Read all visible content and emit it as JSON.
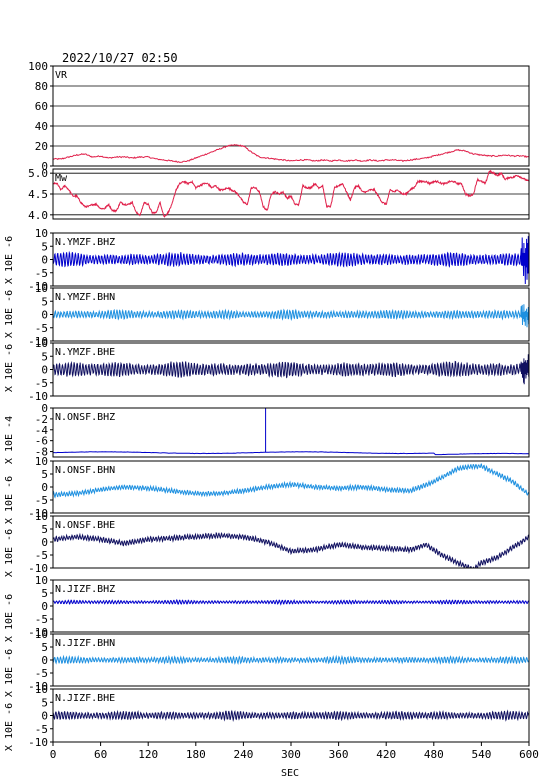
{
  "title": "2022/10/27 02:50",
  "chart_data": {
    "type": "line",
    "title": "2022/10/27 02:50",
    "xlabel": "SEC",
    "xlim": [
      0,
      600
    ],
    "xticks": [
      0,
      60,
      120,
      180,
      240,
      300,
      360,
      420,
      480,
      540,
      600
    ],
    "panels": [
      {
        "id": "vr",
        "label": "VR",
        "ylabel": "",
        "ylim": [
          0,
          100
        ],
        "yticks": [
          0,
          20,
          40,
          60,
          80,
          100
        ],
        "grid": true,
        "color": "#e0204a",
        "series": {
          "kind": "points",
          "x": [
            0,
            10,
            20,
            30,
            40,
            50,
            60,
            70,
            80,
            90,
            100,
            110,
            120,
            130,
            140,
            150,
            160,
            170,
            180,
            190,
            200,
            210,
            220,
            230,
            240,
            250,
            260,
            270,
            280,
            290,
            300,
            310,
            320,
            330,
            340,
            350,
            360,
            370,
            380,
            390,
            400,
            410,
            420,
            430,
            440,
            450,
            460,
            470,
            480,
            490,
            500,
            510,
            520,
            530,
            540,
            550,
            560,
            570,
            580,
            590,
            600
          ],
          "y": [
            7,
            7,
            9,
            11,
            12,
            9,
            10,
            8,
            9,
            9,
            8,
            9,
            9,
            7,
            6,
            5,
            4,
            5,
            8,
            11,
            14,
            17,
            20,
            21,
            20,
            14,
            9,
            8,
            7,
            6,
            5,
            6,
            6,
            5,
            6,
            5,
            6,
            5,
            6,
            5,
            6,
            5,
            6,
            6,
            5,
            6,
            7,
            8,
            10,
            12,
            14,
            16,
            15,
            12,
            11,
            10,
            10,
            11,
            10,
            10,
            9
          ]
        }
      },
      {
        "id": "mw",
        "label": "Mw",
        "ylabel": "",
        "ylim": [
          3.9,
          5.1
        ],
        "yticks": [
          4.0,
          4.5,
          5.0
        ],
        "ytick_labels": [
          "4.0",
          "4.5",
          "5.0"
        ],
        "grid": true,
        "color": "#e0204a",
        "series": {
          "kind": "points",
          "x": [
            0,
            5,
            10,
            15,
            20,
            25,
            30,
            35,
            40,
            45,
            50,
            55,
            60,
            65,
            70,
            75,
            80,
            85,
            90,
            95,
            100,
            105,
            110,
            115,
            120,
            125,
            130,
            135,
            140,
            145,
            150,
            155,
            160,
            165,
            170,
            175,
            180,
            185,
            190,
            195,
            200,
            205,
            210,
            215,
            220,
            225,
            230,
            235,
            240,
            245,
            250,
            255,
            260,
            265,
            270,
            275,
            280,
            285,
            290,
            295,
            300,
            305,
            310,
            315,
            320,
            325,
            330,
            335,
            340,
            345,
            350,
            355,
            360,
            365,
            370,
            375,
            380,
            385,
            390,
            395,
            400,
            405,
            410,
            415,
            420,
            425,
            430,
            435,
            440,
            445,
            450,
            455,
            460,
            465,
            470,
            475,
            480,
            485,
            490,
            495,
            500,
            505,
            510,
            515,
            520,
            525,
            530,
            535,
            540,
            545,
            550,
            555,
            560,
            565,
            570,
            575,
            580,
            585,
            590,
            595,
            600
          ],
          "y": [
            4.75,
            4.75,
            4.6,
            4.7,
            4.6,
            4.45,
            4.45,
            4.3,
            4.2,
            4.2,
            4.25,
            4.25,
            4.15,
            4.15,
            4.25,
            4.1,
            4.1,
            4.3,
            4.25,
            4.25,
            4.3,
            4.05,
            4.0,
            4.3,
            4.25,
            4.05,
            4.05,
            4.3,
            3.95,
            4.05,
            4.25,
            4.6,
            4.75,
            4.8,
            4.75,
            4.8,
            4.65,
            4.7,
            4.75,
            4.75,
            4.65,
            4.7,
            4.6,
            4.6,
            4.65,
            4.6,
            4.55,
            4.45,
            4.3,
            4.25,
            4.65,
            4.65,
            4.55,
            4.2,
            4.1,
            4.5,
            4.55,
            4.5,
            4.55,
            4.4,
            4.45,
            4.25,
            4.25,
            4.7,
            4.65,
            4.65,
            4.75,
            4.65,
            4.7,
            4.2,
            4.2,
            4.65,
            4.7,
            4.75,
            4.55,
            4.35,
            4.65,
            4.7,
            4.55,
            4.55,
            4.6,
            4.6,
            4.45,
            4.3,
            4.25,
            4.6,
            4.55,
            4.6,
            4.5,
            4.5,
            4.6,
            4.65,
            4.8,
            4.8,
            4.8,
            4.75,
            4.8,
            4.8,
            4.75,
            4.75,
            4.8,
            4.8,
            4.75,
            4.75,
            4.5,
            4.45,
            4.5,
            4.85,
            4.8,
            4.75,
            5.05,
            5.0,
            4.95,
            5.0,
            4.85,
            4.9,
            4.9,
            4.95,
            4.9,
            4.85,
            4.8
          ]
        }
      },
      {
        "id": "ymzf-bhz",
        "label": "N.YMZF.BHZ",
        "ylabel": "X 10E -6",
        "ylim": [
          -10,
          10
        ],
        "yticks": [
          -10,
          -5,
          0,
          5,
          10
        ],
        "grid": false,
        "color": "#0000cc",
        "series": {
          "kind": "oscillation",
          "baseline": 0,
          "amplitude": 2.5,
          "end_burst": 8
        }
      },
      {
        "id": "ymzf-bhn",
        "label": "N.YMZF.BHN",
        "ylabel": "X 10E -6",
        "ylim": [
          -10,
          10
        ],
        "yticks": [
          -10,
          -5,
          0,
          5,
          10
        ],
        "grid": false,
        "color": "#1e90e0",
        "series": {
          "kind": "oscillation",
          "baseline": 0,
          "amplitude": 1.6,
          "end_burst": 4
        }
      },
      {
        "id": "ymzf-bhe",
        "label": "N.YMZF.BHE",
        "ylabel": "X 10E -6",
        "ylim": [
          -10,
          10
        ],
        "yticks": [
          -10,
          -5,
          0,
          5,
          10
        ],
        "grid": false,
        "color": "#101060",
        "series": {
          "kind": "oscillation",
          "baseline": 0,
          "amplitude": 2.8,
          "end_burst": 6
        }
      },
      {
        "id": "onsf-bhz",
        "label": "N.ONSF.BHZ",
        "ylabel": "X 10E -4",
        "ylim": [
          -9,
          0
        ],
        "yticks": [
          -8,
          -6,
          -4,
          -2,
          0
        ],
        "grid": false,
        "color": "#0000cc",
        "series": {
          "kind": "onsf-bhz"
        }
      },
      {
        "id": "onsf-bhn",
        "label": "N.ONSF.BHN",
        "ylabel": "X 10E -6",
        "ylim": [
          -10,
          10
        ],
        "yticks": [
          -10,
          -5,
          0,
          5,
          10
        ],
        "grid": false,
        "color": "#1e90e0",
        "series": {
          "kind": "drift",
          "amplitude": 0.9,
          "x": [
            0,
            30,
            60,
            90,
            120,
            150,
            180,
            210,
            240,
            270,
            300,
            330,
            360,
            390,
            420,
            450,
            480,
            510,
            530,
            540,
            560,
            580,
            600
          ],
          "y": [
            -3,
            -2.5,
            -1,
            0,
            -0.5,
            -1.5,
            -2.5,
            -2.5,
            -1.5,
            0,
            1,
            0,
            -0.5,
            0,
            -1,
            -1.5,
            2,
            7,
            8,
            8,
            5,
            2,
            -3
          ]
        }
      },
      {
        "id": "onsf-bhe",
        "label": "N.ONSF.BHE",
        "ylabel": "X 10E -6",
        "ylim": [
          -10,
          10
        ],
        "yticks": [
          -10,
          -5,
          0,
          5,
          10
        ],
        "grid": false,
        "color": "#101060",
        "series": {
          "kind": "drift",
          "amplitude": 1.0,
          "x": [
            0,
            30,
            60,
            90,
            120,
            150,
            180,
            210,
            240,
            270,
            300,
            330,
            360,
            390,
            420,
            450,
            470,
            490,
            510,
            530,
            540,
            560,
            580,
            600
          ],
          "y": [
            1,
            2,
            1,
            -0.5,
            1,
            1.5,
            2,
            2.5,
            2,
            0,
            -3.5,
            -3,
            -1,
            -2,
            -2.5,
            -3,
            -1,
            -5,
            -8,
            -10.5,
            -8,
            -6,
            -2,
            2
          ]
        }
      },
      {
        "id": "jizf-bhz",
        "label": "N.JIZF.BHZ",
        "ylabel": "X 10E -6",
        "ylim": [
          -10,
          10
        ],
        "yticks": [
          -10,
          -5,
          0,
          5,
          10
        ],
        "grid": false,
        "color": "#0000cc",
        "series": {
          "kind": "oscillation",
          "baseline": 1.5,
          "amplitude": 0.7,
          "end_burst": 0
        }
      },
      {
        "id": "jizf-bhn",
        "label": "N.JIZF.BHN",
        "ylabel": "X 10E -6",
        "ylim": [
          -10,
          10
        ],
        "yticks": [
          -10,
          -5,
          0,
          5,
          10
        ],
        "grid": false,
        "color": "#1e90e0",
        "series": {
          "kind": "oscillation",
          "baseline": 0,
          "amplitude": 1.2,
          "end_burst": 0
        }
      },
      {
        "id": "jizf-bhe",
        "label": "N.JIZF.BHE",
        "ylabel": "X 10E -6",
        "ylim": [
          -10,
          10
        ],
        "yticks": [
          -10,
          -5,
          0,
          5,
          10
        ],
        "grid": false,
        "color": "#101060",
        "series": {
          "kind": "oscillation",
          "baseline": 0,
          "amplitude": 1.5,
          "end_burst": 0
        }
      }
    ]
  }
}
